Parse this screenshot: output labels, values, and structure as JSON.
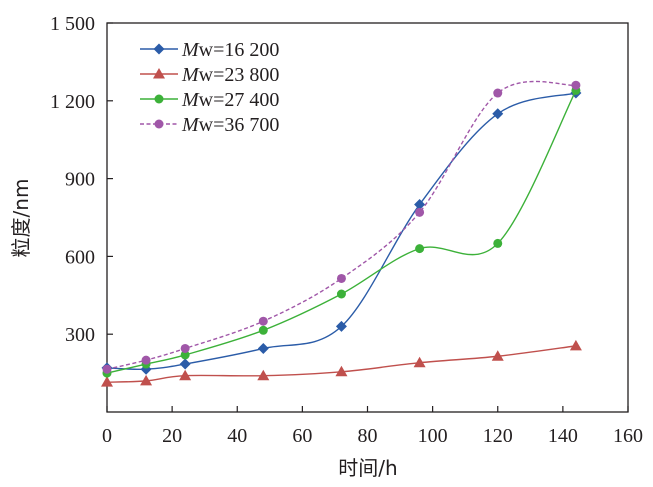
{
  "chart_data": {
    "type": "line",
    "xlabel": "时间/h",
    "ylabel": "粒度/nm",
    "xlim": [
      0,
      160
    ],
    "ylim": [
      0,
      1500
    ],
    "x_ticks": [
      "0",
      "20",
      "40",
      "60",
      "80",
      "100",
      "120",
      "140",
      "160"
    ],
    "y_ticks": [
      "300",
      "600",
      "900",
      "1 200",
      "1 500"
    ],
    "grid": false,
    "legend_position": "top-left",
    "series": [
      {
        "name_prefix": "M",
        "name": "w=16 200",
        "color": "#2b5ca8",
        "marker": "diamond",
        "dash": "solid",
        "x": [
          0,
          12,
          24,
          48,
          72,
          96,
          120,
          144
        ],
        "y": [
          170,
          165,
          185,
          245,
          330,
          800,
          1150,
          1230
        ]
      },
      {
        "name_prefix": "M",
        "name": "w=23 800",
        "color": "#c0504d",
        "marker": "triangle",
        "dash": "solid",
        "x": [
          0,
          12,
          24,
          48,
          72,
          96,
          120,
          144
        ],
        "y": [
          115,
          120,
          140,
          140,
          155,
          190,
          215,
          255
        ]
      },
      {
        "name_prefix": "M",
        "name": "w=27 400",
        "color": "#3cb139",
        "marker": "circle",
        "dash": "solid",
        "x": [
          0,
          12,
          24,
          48,
          72,
          96,
          120,
          144
        ],
        "y": [
          150,
          185,
          220,
          315,
          455,
          630,
          650,
          1240
        ]
      },
      {
        "name_prefix": "M",
        "name": "w=36 700",
        "color": "#a057a8",
        "marker": "circle",
        "dash": "dashed",
        "x": [
          0,
          12,
          24,
          48,
          72,
          96,
          120,
          144
        ],
        "y": [
          165,
          200,
          245,
          350,
          515,
          770,
          1230,
          1260
        ]
      }
    ]
  }
}
